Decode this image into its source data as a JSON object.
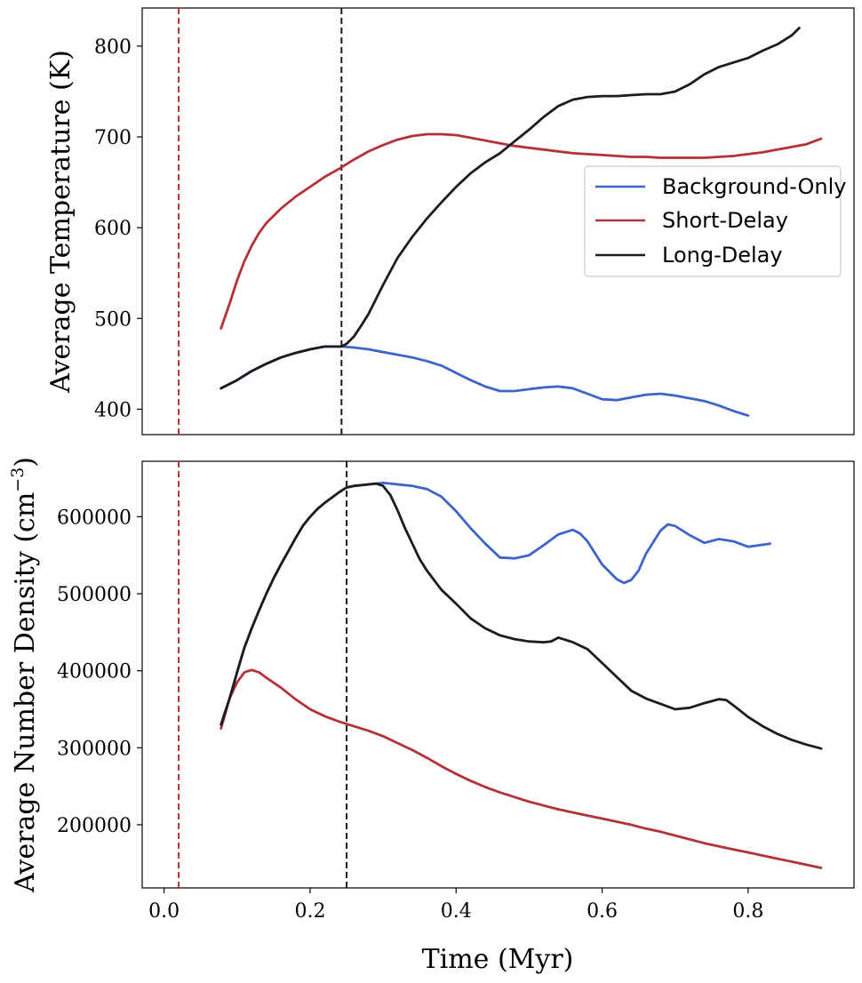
{
  "chart_data": [
    {
      "type": "line",
      "id": "temperature",
      "title": "",
      "xlabel": "",
      "ylabel": "Average Temperature (K)",
      "xlim": [
        -0.03,
        0.945
      ],
      "ylim": [
        372,
        842
      ],
      "yticks": [
        400,
        500,
        600,
        700,
        800
      ],
      "ytick_labels": [
        "400",
        "500",
        "600",
        "700",
        "800"
      ],
      "show_xticks": false,
      "grid": false,
      "vlines": [
        {
          "x": 0.02,
          "color": "#b5313a",
          "style": "dashed"
        },
        {
          "x": 0.243,
          "color": "#1c1c1e",
          "style": "dashed"
        }
      ],
      "legend": {
        "position": "center-right",
        "entries": [
          "Background-Only",
          "Short-Delay",
          "Long-Delay"
        ]
      },
      "series": [
        {
          "name": "Background-Only",
          "color": "#3d64c9",
          "x": [
            0.078,
            0.1,
            0.12,
            0.14,
            0.16,
            0.18,
            0.2,
            0.22,
            0.243,
            0.26,
            0.28,
            0.3,
            0.32,
            0.34,
            0.36,
            0.38,
            0.4,
            0.42,
            0.44,
            0.46,
            0.48,
            0.5,
            0.52,
            0.54,
            0.56,
            0.58,
            0.6,
            0.62,
            0.64,
            0.66,
            0.68,
            0.7,
            0.72,
            0.74,
            0.76,
            0.78,
            0.8
          ],
          "values": [
            423,
            432,
            442,
            450,
            457,
            462,
            466,
            469,
            469,
            468,
            466,
            463,
            460,
            457,
            453,
            448,
            440,
            432,
            425,
            420,
            420,
            422,
            424,
            425,
            423,
            417,
            411,
            410,
            413,
            416,
            417,
            415,
            412,
            409,
            404,
            398,
            393
          ]
        },
        {
          "name": "Short-Delay",
          "color": "#b5313a",
          "x": [
            0.078,
            0.09,
            0.1,
            0.11,
            0.12,
            0.13,
            0.14,
            0.16,
            0.18,
            0.2,
            0.22,
            0.24,
            0.26,
            0.28,
            0.3,
            0.32,
            0.34,
            0.36,
            0.38,
            0.4,
            0.42,
            0.44,
            0.46,
            0.48,
            0.5,
            0.52,
            0.54,
            0.56,
            0.58,
            0.6,
            0.62,
            0.64,
            0.66,
            0.68,
            0.7,
            0.72,
            0.74,
            0.76,
            0.78,
            0.8,
            0.82,
            0.84,
            0.86,
            0.88,
            0.9
          ],
          "values": [
            489,
            517,
            542,
            563,
            580,
            594,
            605,
            621,
            634,
            645,
            656,
            665,
            675,
            684,
            691,
            697,
            701,
            703,
            703,
            702,
            699,
            696,
            693,
            690,
            688,
            686,
            684,
            682,
            681,
            680,
            679,
            678,
            678,
            677,
            677,
            677,
            677,
            678,
            679,
            681,
            683,
            686,
            689,
            692,
            698
          ]
        },
        {
          "name": "Long-Delay",
          "color": "#1c1c1e",
          "x": [
            0.078,
            0.1,
            0.12,
            0.14,
            0.16,
            0.18,
            0.2,
            0.22,
            0.243,
            0.25,
            0.26,
            0.27,
            0.28,
            0.3,
            0.32,
            0.34,
            0.36,
            0.38,
            0.4,
            0.42,
            0.44,
            0.46,
            0.48,
            0.5,
            0.52,
            0.54,
            0.56,
            0.58,
            0.6,
            0.62,
            0.64,
            0.66,
            0.68,
            0.7,
            0.72,
            0.74,
            0.76,
            0.78,
            0.8,
            0.82,
            0.84,
            0.86,
            0.87
          ],
          "values": [
            423,
            432,
            442,
            450,
            457,
            462,
            466,
            469,
            469,
            472,
            480,
            492,
            505,
            537,
            567,
            590,
            610,
            628,
            645,
            660,
            672,
            682,
            695,
            708,
            722,
            734,
            741,
            744,
            745,
            745,
            746,
            747,
            747,
            750,
            758,
            769,
            777,
            782,
            787,
            795,
            802,
            812,
            820
          ]
        }
      ]
    },
    {
      "type": "line",
      "id": "density",
      "title": "",
      "xlabel": "Time (Myr)",
      "ylabel": "Average Number Density (cm−3)",
      "ylabel_text": "Average Number Density (cm",
      "ylabel_sup": "−3",
      "ylabel_close": ")",
      "xlim": [
        -0.03,
        0.945
      ],
      "ylim": [
        118000,
        672000
      ],
      "xticks": [
        0.0,
        0.2,
        0.4,
        0.6,
        0.8
      ],
      "xtick_labels": [
        "0.0",
        "0.2",
        "0.4",
        "0.6",
        "0.8"
      ],
      "yticks": [
        200000,
        300000,
        400000,
        500000,
        600000
      ],
      "ytick_labels": [
        "200000",
        "300000",
        "400000",
        "500000",
        "600000"
      ],
      "grid": false,
      "vlines": [
        {
          "x": 0.02,
          "color": "#b5313a",
          "style": "dashed"
        },
        {
          "x": 0.25,
          "color": "#1c1c1e",
          "style": "dashed"
        }
      ],
      "series": [
        {
          "name": "Background-Only",
          "color": "#3d64c9",
          "x": [
            0.078,
            0.09,
            0.1,
            0.11,
            0.12,
            0.13,
            0.14,
            0.15,
            0.16,
            0.17,
            0.18,
            0.19,
            0.2,
            0.21,
            0.22,
            0.23,
            0.24,
            0.25,
            0.26,
            0.27,
            0.28,
            0.29,
            0.3,
            0.31,
            0.32,
            0.34,
            0.36,
            0.38,
            0.4,
            0.42,
            0.44,
            0.46,
            0.48,
            0.5,
            0.52,
            0.54,
            0.56,
            0.57,
            0.58,
            0.6,
            0.62,
            0.63,
            0.64,
            0.65,
            0.66,
            0.68,
            0.69,
            0.7,
            0.72,
            0.74,
            0.76,
            0.78,
            0.8,
            0.83
          ],
          "values": [
            330000,
            365000,
            398000,
            430000,
            455000,
            478000,
            500000,
            520000,
            538000,
            555000,
            572000,
            588000,
            600000,
            610000,
            618000,
            625000,
            632000,
            638000,
            640000,
            641000,
            642000,
            643000,
            644000,
            643000,
            642000,
            640000,
            636000,
            626000,
            607000,
            585000,
            565000,
            547000,
            546000,
            550000,
            563000,
            577000,
            583000,
            578000,
            568000,
            538000,
            519000,
            514000,
            518000,
            530000,
            552000,
            582000,
            590000,
            588000,
            576000,
            566000,
            571000,
            568000,
            561000,
            565000
          ]
        },
        {
          "name": "Short-Delay",
          "color": "#b5313a",
          "x": [
            0.078,
            0.09,
            0.1,
            0.11,
            0.12,
            0.13,
            0.14,
            0.16,
            0.18,
            0.2,
            0.22,
            0.24,
            0.26,
            0.28,
            0.3,
            0.32,
            0.34,
            0.36,
            0.38,
            0.4,
            0.42,
            0.44,
            0.46,
            0.48,
            0.5,
            0.52,
            0.54,
            0.56,
            0.58,
            0.6,
            0.62,
            0.64,
            0.66,
            0.68,
            0.7,
            0.72,
            0.74,
            0.76,
            0.78,
            0.8,
            0.82,
            0.84,
            0.86,
            0.88,
            0.9
          ],
          "values": [
            325000,
            365000,
            385000,
            398000,
            401000,
            398000,
            391000,
            378000,
            363000,
            350000,
            341000,
            334000,
            328000,
            322000,
            315000,
            306000,
            297000,
            287000,
            276000,
            266000,
            257000,
            249000,
            242000,
            236000,
            230000,
            225000,
            220000,
            216000,
            212000,
            208000,
            204000,
            200000,
            195000,
            191000,
            186000,
            181000,
            176000,
            172000,
            168000,
            164000,
            160000,
            156000,
            152000,
            148000,
            144000
          ]
        },
        {
          "name": "Long-Delay",
          "color": "#1c1c1e",
          "x": [
            0.078,
            0.09,
            0.1,
            0.11,
            0.12,
            0.13,
            0.14,
            0.15,
            0.16,
            0.17,
            0.18,
            0.19,
            0.2,
            0.21,
            0.22,
            0.23,
            0.24,
            0.25,
            0.26,
            0.27,
            0.28,
            0.29,
            0.3,
            0.31,
            0.32,
            0.33,
            0.34,
            0.35,
            0.36,
            0.38,
            0.4,
            0.42,
            0.44,
            0.46,
            0.48,
            0.5,
            0.52,
            0.53,
            0.54,
            0.55,
            0.56,
            0.58,
            0.6,
            0.62,
            0.64,
            0.66,
            0.68,
            0.7,
            0.72,
            0.74,
            0.76,
            0.77,
            0.78,
            0.8,
            0.82,
            0.84,
            0.86,
            0.88,
            0.9
          ],
          "values": [
            330000,
            365000,
            398000,
            430000,
            455000,
            478000,
            500000,
            520000,
            538000,
            555000,
            572000,
            588000,
            600000,
            610000,
            618000,
            625000,
            632000,
            638000,
            640000,
            641000,
            642000,
            643000,
            640000,
            628000,
            608000,
            585000,
            565000,
            545000,
            530000,
            505000,
            487000,
            468000,
            455000,
            446000,
            441000,
            438000,
            437000,
            438000,
            443000,
            440000,
            437000,
            428000,
            410000,
            392000,
            374000,
            364000,
            357000,
            350000,
            352000,
            358000,
            363000,
            362000,
            355000,
            340000,
            328000,
            318000,
            310000,
            304000,
            299000
          ]
        }
      ]
    }
  ]
}
